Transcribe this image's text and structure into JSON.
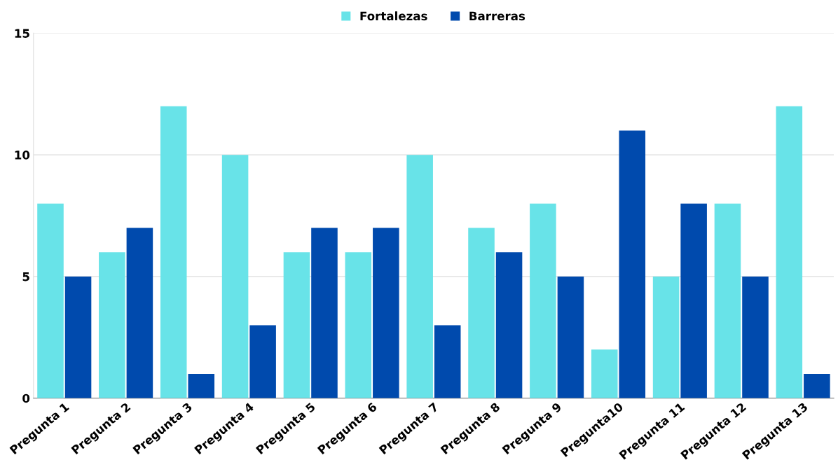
{
  "chart_data": {
    "type": "bar",
    "categories": [
      "Pregunta 1",
      "Pregunta 2",
      "Pregunta 3",
      "Pregunta 4",
      "Pregunta 5",
      "Pregunta 6",
      "Pregunta 7",
      "Pregunta 8",
      "Pregunta 9",
      "Pregunta10",
      "Pregunta 11",
      "Pregunta 12",
      "Pregunta 13"
    ],
    "series": [
      {
        "name": "Fortalezas",
        "color": "#68e3e8",
        "values": [
          8,
          6,
          12,
          10,
          6,
          6,
          10,
          7,
          8,
          2,
          5,
          8,
          12
        ]
      },
      {
        "name": "Barreras",
        "color": "#004aad",
        "values": [
          5,
          7,
          1,
          3,
          7,
          7,
          3,
          6,
          5,
          11,
          8,
          5,
          1
        ]
      }
    ],
    "ylim": [
      0,
      15
    ],
    "yticks": [
      0,
      5,
      10,
      15
    ],
    "grid": "y",
    "legend": "top"
  }
}
